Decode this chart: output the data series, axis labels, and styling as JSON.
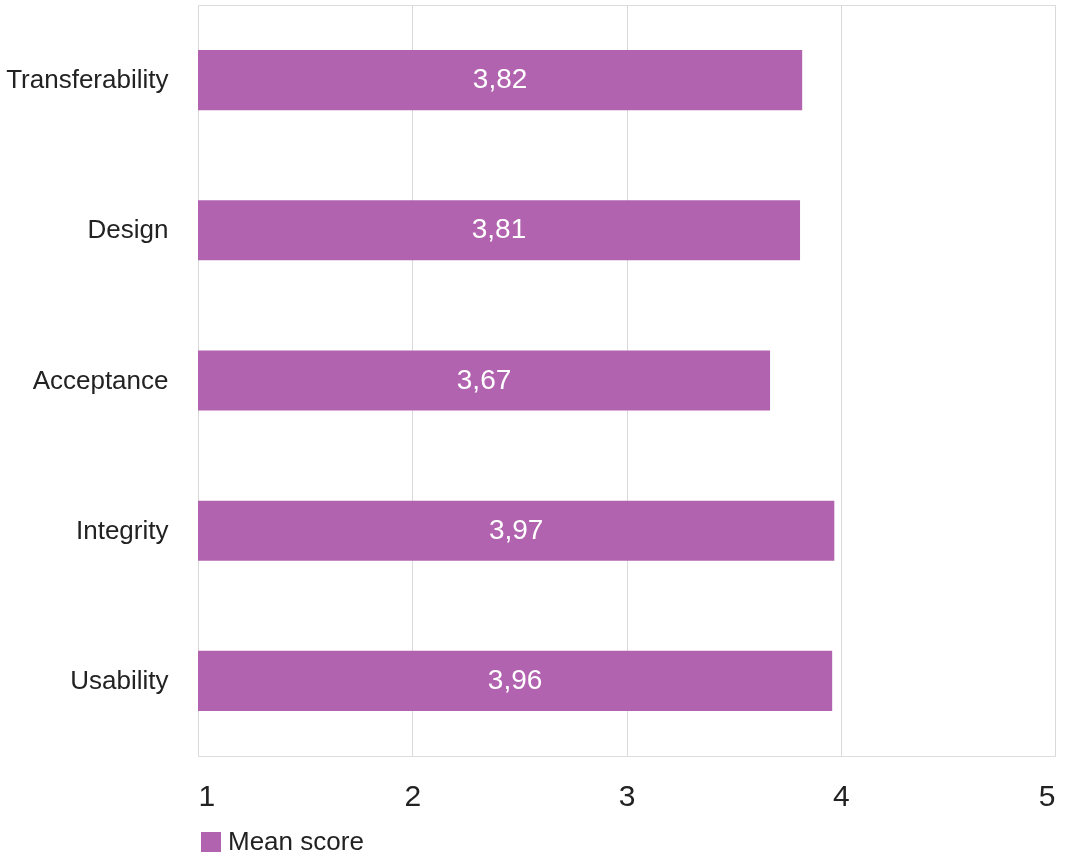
{
  "chart_data": {
    "type": "bar",
    "orientation": "horizontal",
    "categories": [
      "Transferability",
      "Design",
      "Acceptance",
      "Integrity",
      "Usability"
    ],
    "series": [
      {
        "name": "Mean score",
        "color": "#b163af",
        "values": [
          3.82,
          3.81,
          3.67,
          3.97,
          3.96
        ],
        "value_labels": [
          "3,82",
          "3,81",
          "3,67",
          "3,97",
          "3,96"
        ]
      }
    ],
    "xlim": [
      1,
      5
    ],
    "xticks": [
      1,
      2,
      3,
      4,
      5
    ],
    "grid": "x",
    "legend": "bottom"
  }
}
